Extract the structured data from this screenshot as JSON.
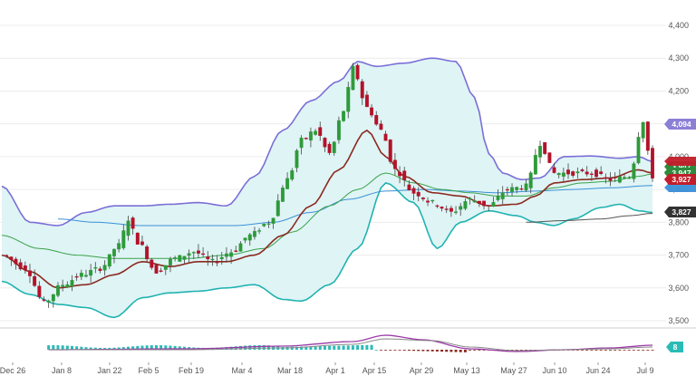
{
  "chart_data": {
    "type": "candlestick",
    "x_ticks": [
      "Dec 26",
      "Jan 8",
      "Jan 22",
      "Feb 5",
      "Feb 19",
      "Mar 4",
      "Mar 18",
      "Apr 1",
      "Apr 15",
      "Apr 29",
      "May 13",
      "May 27",
      "Jun 10",
      "Jun 24",
      "Jul 9"
    ],
    "y_ticks": [
      "3,500",
      "3,600",
      "3,700",
      "3,800",
      "3,900",
      "4,000",
      "4,100",
      "4,200",
      "4,300",
      "4,400"
    ],
    "ylim": [
      3480,
      4440
    ],
    "grid": true,
    "price_badges": [
      {
        "label": "4,094",
        "value": 4094,
        "color": "#8b7fd6"
      },
      {
        "label": "3,947",
        "value": 3947,
        "color": "#2e8b3e"
      },
      {
        "label": "3,927",
        "value": 3927,
        "color": "#c21e2a"
      },
      {
        "label": "3,827",
        "value": 3827,
        "color": "#333333"
      }
    ],
    "indicator_badge": {
      "label": "8",
      "color": "#2bbbb6"
    },
    "colors": {
      "up": "#2e9a3a",
      "down": "#b3122a",
      "bollinger_band": "#7b6fd6",
      "bollinger_lower": "#20b3b0",
      "bollinger_fill": "#dff4f5",
      "ma_fast": "#8b2a1f",
      "ma_mid": "#3aa14a",
      "ma_slow": "#3a90d8",
      "ma_long": "#555555",
      "macd_line": "#9c3aa8",
      "signal_line": "#888888",
      "histogram_pos": "#2bbbb6",
      "histogram_neg": "#8b2a1f"
    }
  }
}
